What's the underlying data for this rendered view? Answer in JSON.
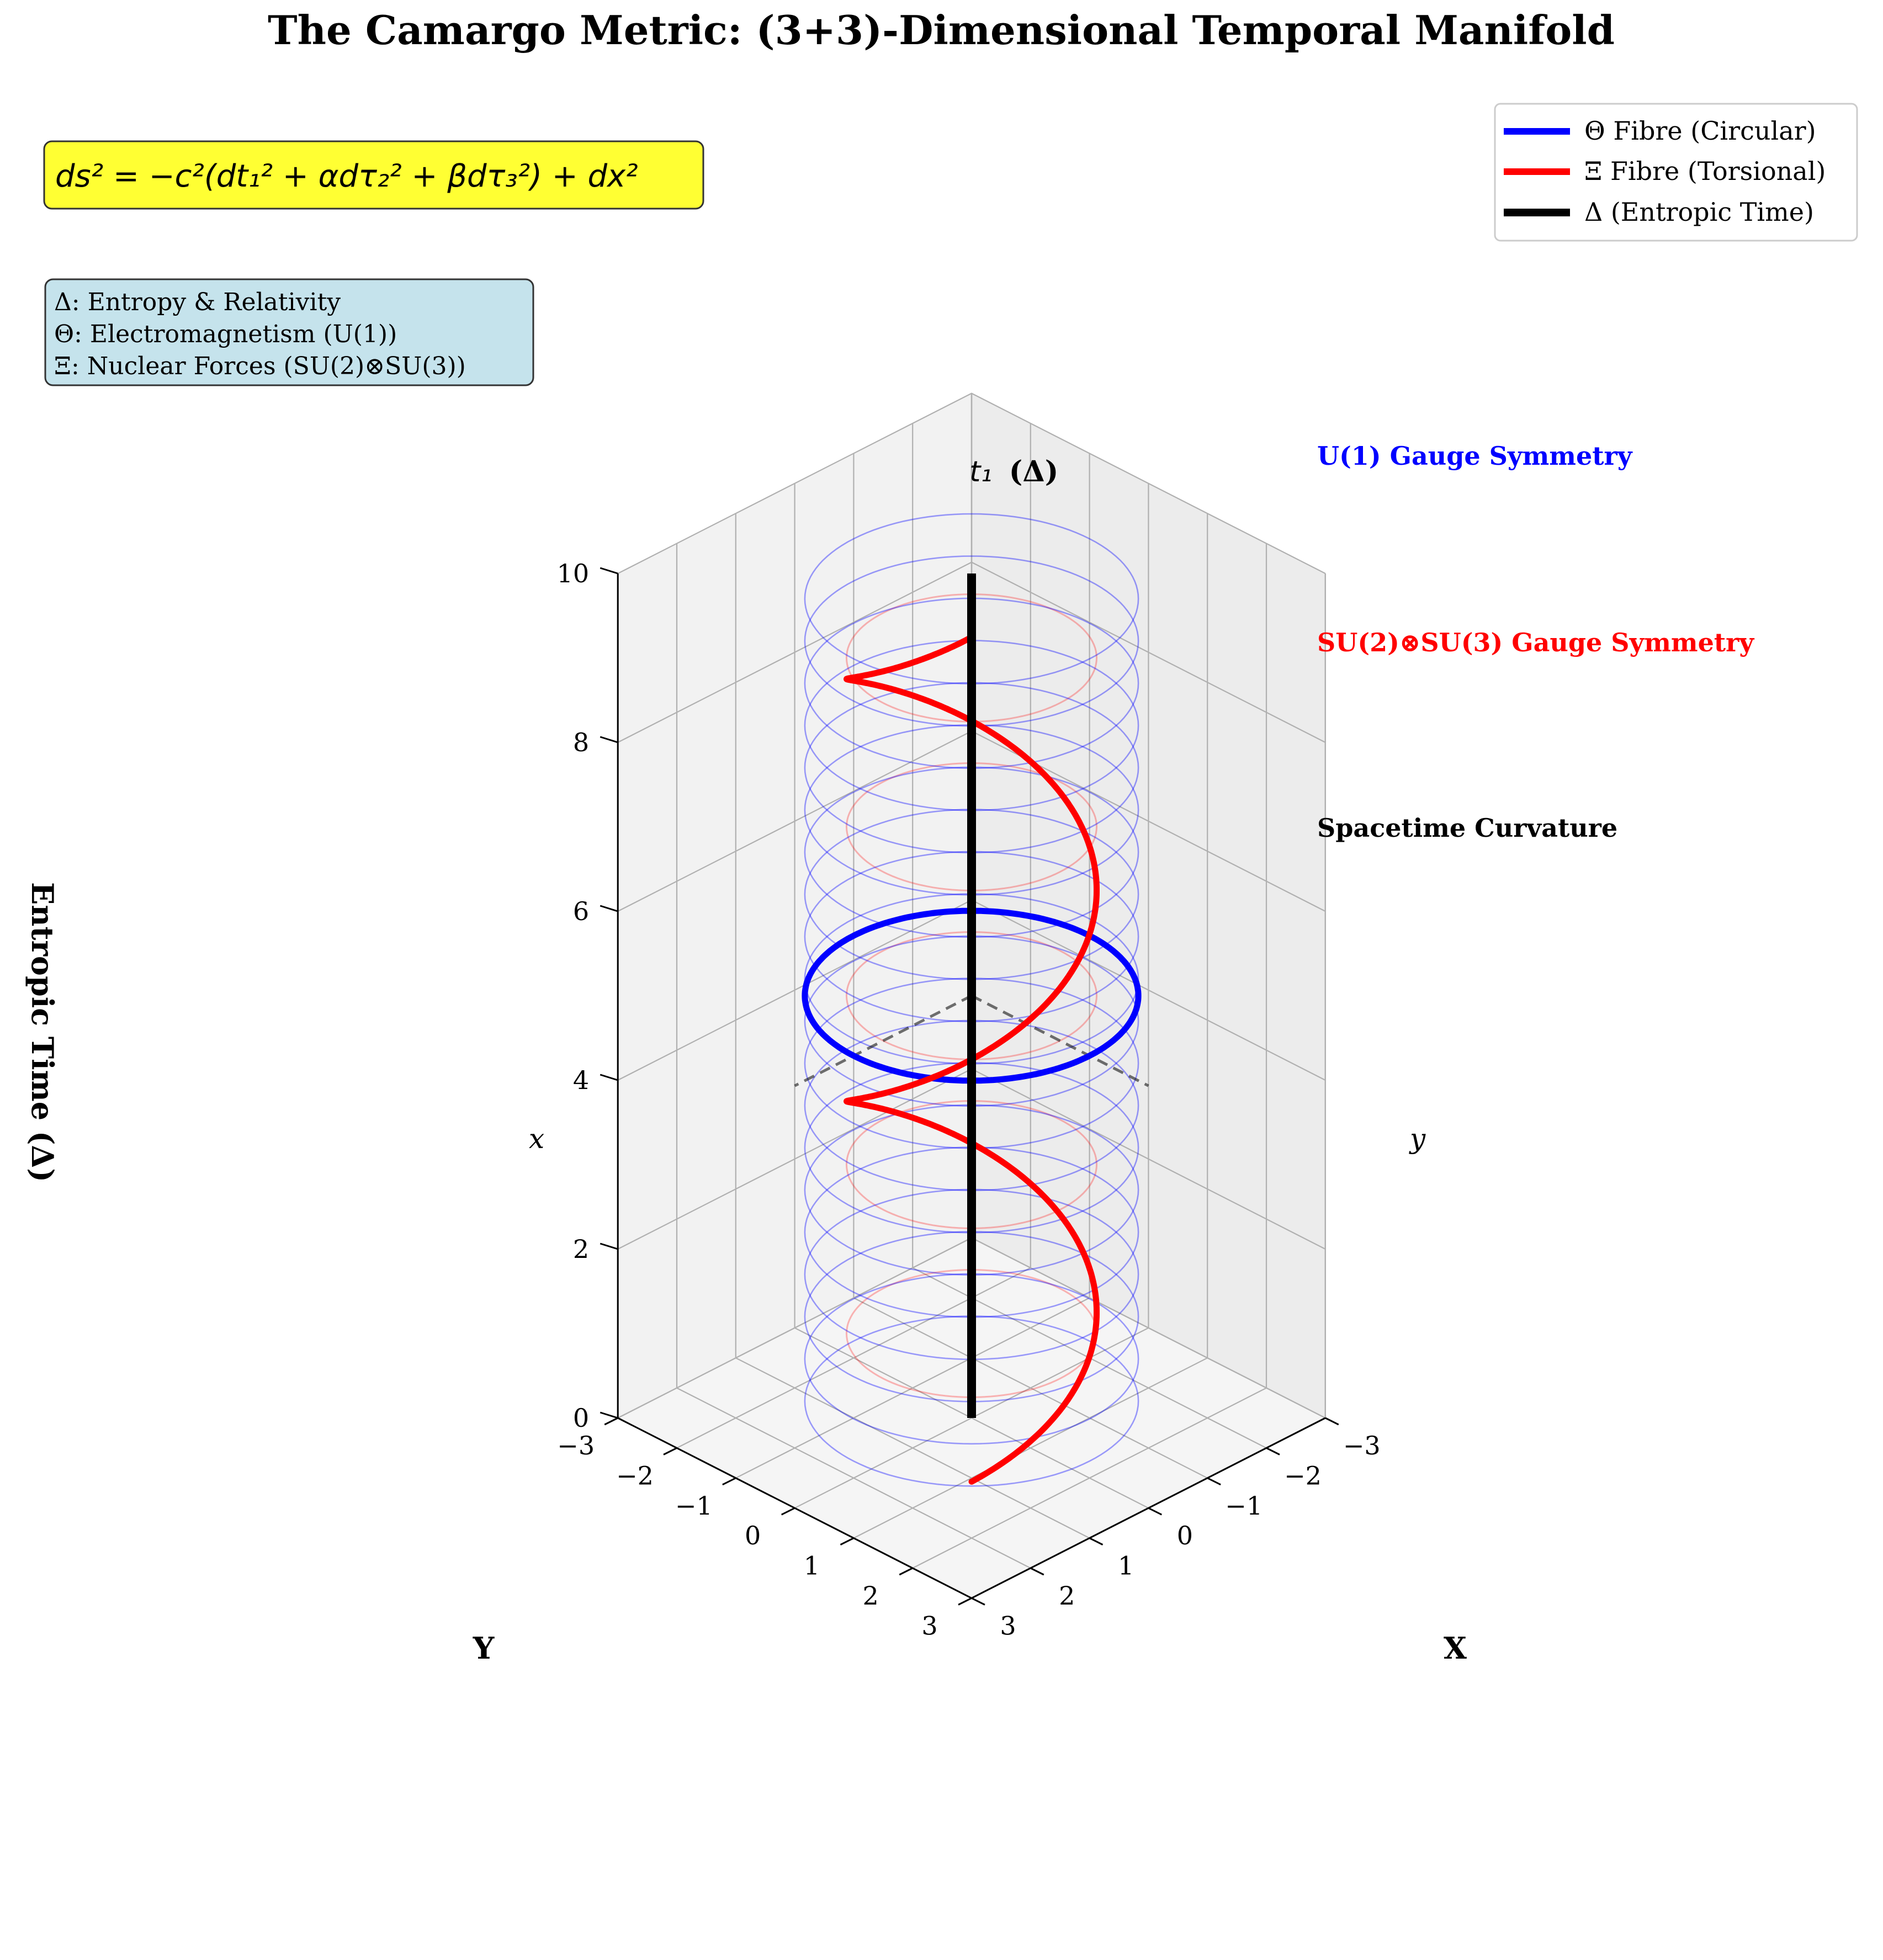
{
  "chart_data": {
    "type": "line3d",
    "title": "The Camargo Metric: (3+3)-Dimensional Temporal Manifold",
    "xlabel": "X",
    "ylabel": "Y",
    "zlabel": "Entropic Time (Δ)",
    "xlim": [
      -3,
      3
    ],
    "ylim": [
      -3,
      3
    ],
    "zlim": [
      0,
      10
    ],
    "x_ticks": [
      "−3",
      "−2",
      "−1",
      "0",
      "1",
      "2",
      "3"
    ],
    "y_ticks": [
      "−3",
      "−2",
      "−1",
      "0",
      "1",
      "2",
      "3"
    ],
    "z_ticks": [
      "0",
      "2",
      "4",
      "6",
      "8",
      "10"
    ],
    "grid": true,
    "legend_position": "top-right",
    "series": [
      {
        "name": "Θ Fibre (Circular)",
        "color": "#0000ff",
        "kind": "circle",
        "radius": 2.0,
        "z": 5.0
      },
      {
        "name": "Ξ Fibre (Torsional)",
        "color": "#ff0000",
        "kind": "helix",
        "radius": 1.5,
        "turns": 2.0,
        "z_range": [
          0,
          10
        ]
      },
      {
        "name": "Δ (Entropic Time)",
        "color": "#000000",
        "kind": "vertical",
        "x": 0,
        "y": 0,
        "z_range": [
          0,
          10
        ]
      }
    ],
    "background_rings": {
      "theta": {
        "color": "#0000ff",
        "radius": 2.0,
        "z": [
          0.2,
          0.7,
          1.2,
          1.7,
          2.2,
          2.7,
          3.2,
          3.7,
          4.2,
          4.7,
          5.2,
          5.7,
          6.2,
          6.7,
          7.2,
          7.7,
          8.2,
          8.7,
          9.2,
          9.7
        ]
      },
      "xi": {
        "color": "#ff0000",
        "radius": 1.5,
        "z": [
          1,
          3,
          5,
          7,
          9
        ]
      }
    },
    "annotations": {
      "formula": "ds² = −c²(dt₁² + αdτ₂² + βdτ₃²) + dx²",
      "legend_box": [
        "Δ: Entropy & Relativity",
        "Θ: Electromagnetism (U(1))",
        "Ξ: Nuclear Forces (SU(2)⊗SU(3))"
      ],
      "u1_label": "U(1) Gauge Symmetry",
      "su_label": "SU(2)⊗SU(3) Gauge Symmetry",
      "curvature_label": "Spacetime Curvature",
      "t1_label_main": "t₁",
      "t1_label_suffix": "(Δ)",
      "axis_x_marker": "x",
      "axis_y_marker": "y"
    }
  }
}
